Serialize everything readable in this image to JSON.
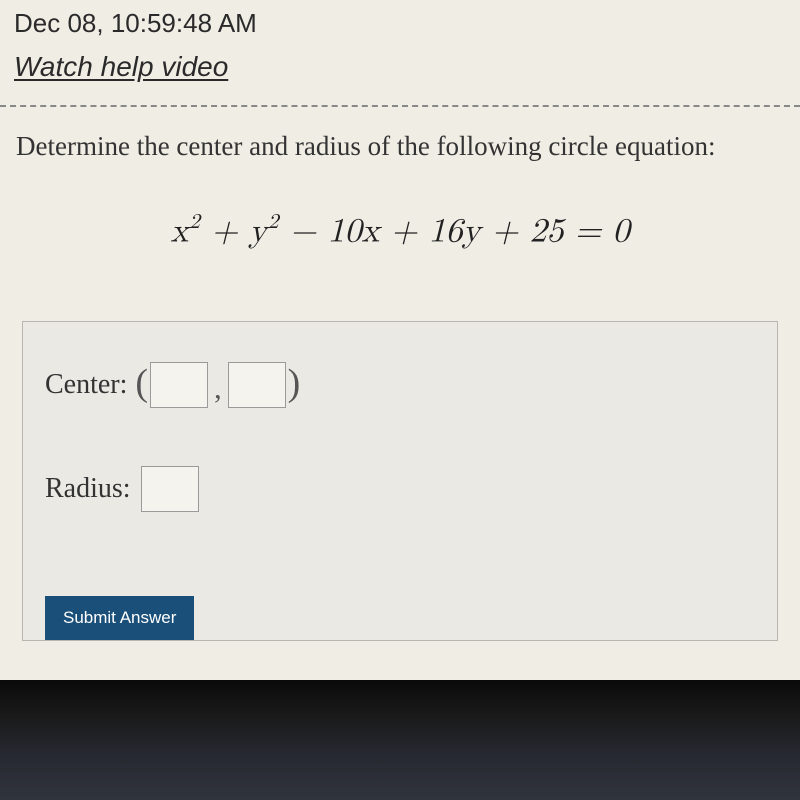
{
  "header": {
    "timestamp": "Dec 08, 10:59:48 AM",
    "help_link": "Watch help video"
  },
  "question": {
    "prompt": "Determine the center and radius of the following circle equation:",
    "equation_parts": {
      "x_var": "x",
      "y_var": "y",
      "sq": "2",
      "t3": " − 10x + 16y + 25 = 0"
    }
  },
  "answer": {
    "center_label": "Center:",
    "radius_label": "Radius:",
    "paren_open": "(",
    "paren_close": ")",
    "comma": ",",
    "center_x": "",
    "center_y": "",
    "radius": ""
  },
  "submit": {
    "label": "Submit Answer"
  },
  "colors": {
    "page_bg": "#f0ede5",
    "text": "#2c3e50",
    "box_bg": "#eae9e4",
    "box_border": "#b8b6b0",
    "input_border": "#9a9a9a",
    "submit_bg": "#1a4f7a",
    "submit_text": "#ffffff"
  }
}
